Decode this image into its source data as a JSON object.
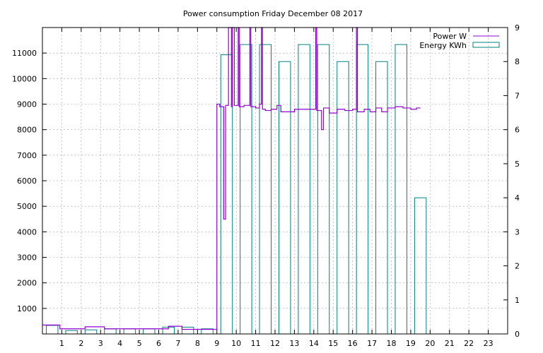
{
  "chart_data": {
    "type": "line",
    "title": "Power consumption Friday December 08 2017",
    "x_ticks": [
      "1",
      "2",
      "3",
      "4",
      "5",
      "6",
      "7",
      "8",
      "9",
      "10",
      "11",
      "12",
      "13",
      "14",
      "15",
      "16",
      "17",
      "18",
      "19",
      "20",
      "21",
      "22",
      "23"
    ],
    "xlim": [
      0,
      24
    ],
    "y_left_ticks": [
      "1000",
      "2000",
      "3000",
      "4000",
      "5000",
      "6000",
      "7000",
      "8000",
      "9000",
      "10000",
      "11000"
    ],
    "y_left_lim": [
      0,
      12000
    ],
    "y_right_ticks": [
      "0",
      "1",
      "2",
      "3",
      "4",
      "5",
      "6",
      "7",
      "8",
      "9"
    ],
    "y_right_lim": [
      0,
      9
    ],
    "grid": true,
    "legend_position": "top-right",
    "series": [
      {
        "name": "Power W",
        "axis": "left",
        "style": "steps",
        "color": "#9400d3",
        "points": [
          [
            0.0,
            350
          ],
          [
            0.9,
            200
          ],
          [
            2.2,
            280
          ],
          [
            3.2,
            200
          ],
          [
            6.5,
            300
          ],
          [
            7.2,
            180
          ],
          [
            8.95,
            180
          ],
          [
            9.0,
            9000
          ],
          [
            9.15,
            8900
          ],
          [
            9.35,
            4500
          ],
          [
            9.45,
            8950
          ],
          [
            9.6,
            12000
          ],
          [
            9.75,
            8900
          ],
          [
            9.8,
            12000
          ],
          [
            9.9,
            8950
          ],
          [
            10.1,
            12000
          ],
          [
            10.15,
            8900
          ],
          [
            10.4,
            8950
          ],
          [
            10.7,
            12000
          ],
          [
            10.75,
            8900
          ],
          [
            11.0,
            8850
          ],
          [
            11.2,
            9000
          ],
          [
            11.3,
            12000
          ],
          [
            11.35,
            8800
          ],
          [
            11.5,
            8750
          ],
          [
            11.8,
            8800
          ],
          [
            12.1,
            8950
          ],
          [
            12.3,
            8700
          ],
          [
            13.0,
            8800
          ],
          [
            13.5,
            8800
          ],
          [
            14.1,
            12000
          ],
          [
            14.15,
            8750
          ],
          [
            14.4,
            8000
          ],
          [
            14.5,
            8850
          ],
          [
            14.8,
            8650
          ],
          [
            15.2,
            8800
          ],
          [
            15.6,
            8750
          ],
          [
            16.0,
            8800
          ],
          [
            16.2,
            12000
          ],
          [
            16.25,
            8700
          ],
          [
            16.6,
            8800
          ],
          [
            16.9,
            8700
          ],
          [
            17.2,
            8850
          ],
          [
            17.5,
            8700
          ],
          [
            17.8,
            8850
          ],
          [
            18.2,
            8900
          ],
          [
            18.6,
            8850
          ],
          [
            19.0,
            8800
          ],
          [
            19.3,
            8850
          ],
          [
            19.5,
            8850
          ]
        ]
      },
      {
        "name": "Energy KWh",
        "axis": "right",
        "style": "bars",
        "color": "#008080",
        "bars": [
          {
            "hour": 0,
            "value": 0.25
          },
          {
            "hour": 1,
            "value": 0.1
          },
          {
            "hour": 2,
            "value": 0.12
          },
          {
            "hour": 3,
            "value": 0.15
          },
          {
            "hour": 4,
            "value": 0.15
          },
          {
            "hour": 5,
            "value": 0.15
          },
          {
            "hour": 6,
            "value": 0.2
          },
          {
            "hour": 7,
            "value": 0.2
          },
          {
            "hour": 8,
            "value": 0.15
          },
          {
            "hour": 9,
            "value": 8.2
          },
          {
            "hour": 10,
            "value": 8.5
          },
          {
            "hour": 11,
            "value": 8.5
          },
          {
            "hour": 12,
            "value": 8.0
          },
          {
            "hour": 13,
            "value": 8.5
          },
          {
            "hour": 14,
            "value": 8.5
          },
          {
            "hour": 15,
            "value": 8.0
          },
          {
            "hour": 16,
            "value": 8.5
          },
          {
            "hour": 17,
            "value": 8.0
          },
          {
            "hour": 18,
            "value": 8.5
          },
          {
            "hour": 19,
            "value": 4.0
          }
        ]
      }
    ]
  }
}
